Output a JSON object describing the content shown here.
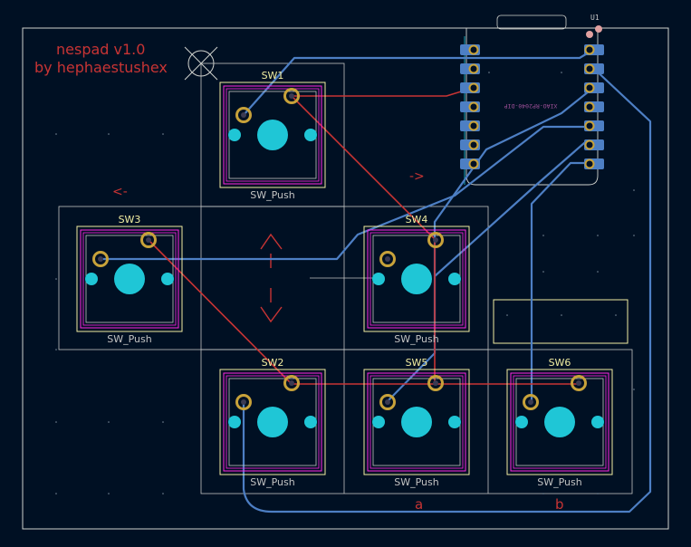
{
  "board": {
    "title_line1": "nespad v1.0",
    "title_line2": "by hephaestushex",
    "module_ref": "U1",
    "module_value": "XIAO-RP2040-DIP"
  },
  "switches": [
    {
      "ref": "SW1",
      "value": "SW_Push"
    },
    {
      "ref": "SW2",
      "value": "SW_Push"
    },
    {
      "ref": "SW3",
      "value": "SW_Push"
    },
    {
      "ref": "SW4",
      "value": "SW_Push"
    },
    {
      "ref": "SW5",
      "value": "SW_Push"
    },
    {
      "ref": "SW6",
      "value": "SW_Push"
    }
  ],
  "labels": {
    "left_arrow": "<-",
    "right_arrow": "->",
    "btn_a": "a",
    "btn_b": "b"
  },
  "colors": {
    "background": "#001023",
    "edge_cuts": "#d0d2cd",
    "fab": "#c2c2c2",
    "f_silkscreen": "#f2eda1",
    "f_courtyard": "#ff26e2",
    "pad": "#c8a23a",
    "front_copper": "#c83434",
    "back_copper": "#4d7fc4",
    "npth": "#1fc6d6",
    "module_pad": "#4d7fc4",
    "user_text": "#c83434",
    "module_silk": "#c8c8c8",
    "module_label": "#a0509a"
  }
}
